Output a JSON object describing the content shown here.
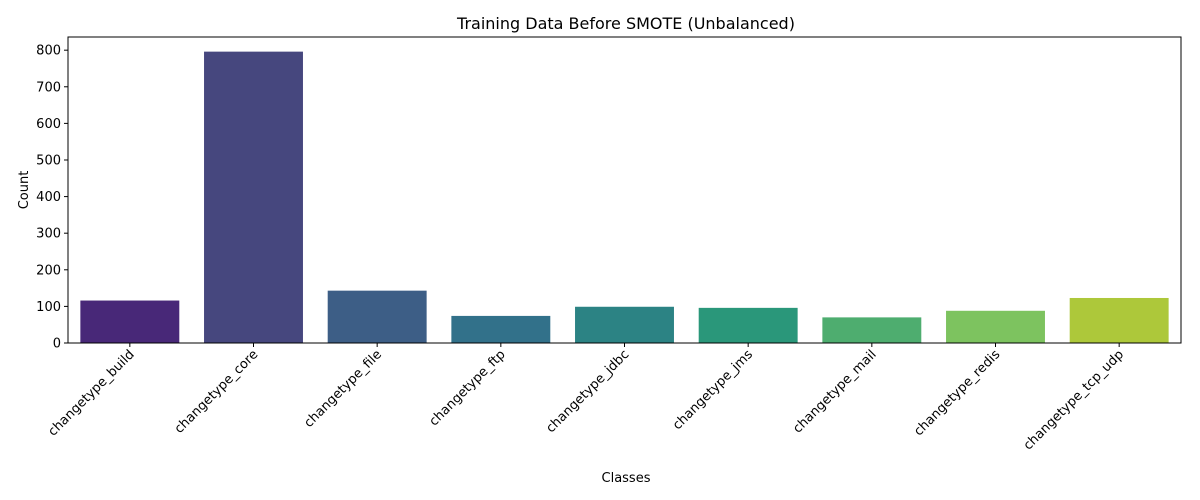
{
  "chart_data": {
    "type": "bar",
    "title": "Training Data Before SMOTE (Unbalanced)",
    "xlabel": "Classes",
    "ylabel": "Count",
    "ylim": [
      0,
      836
    ],
    "yticks": [
      0,
      100,
      200,
      300,
      400,
      500,
      600,
      700,
      800
    ],
    "categories": [
      "changetype_build",
      "changetype_core",
      "changetype_file",
      "changetype_ftp",
      "changetype_jdbc",
      "changetype_jms",
      "changetype_mail",
      "changetype_redis",
      "changetype_tcp_udp"
    ],
    "values": [
      116,
      796,
      143,
      74,
      99,
      96,
      70,
      88,
      123
    ],
    "colors": [
      "#482878",
      "#46477e",
      "#3d5e86",
      "#32718a",
      "#2c8384",
      "#2a977a",
      "#4ead6f",
      "#7dc35f",
      "#adc83a"
    ],
    "grid": false,
    "legend": "none"
  }
}
